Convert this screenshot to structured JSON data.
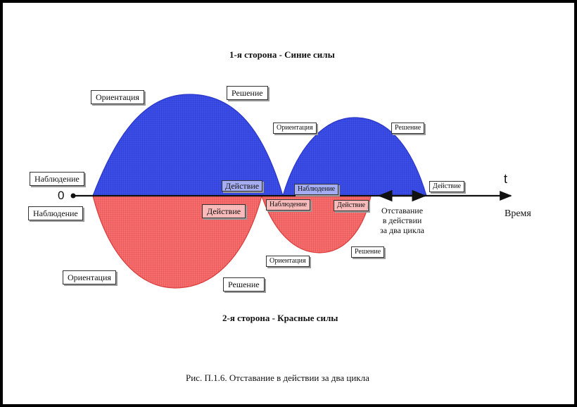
{
  "headings": {
    "top": "1-я сторона - Синие силы",
    "bottom": "2-я сторона - Красные силы"
  },
  "labels": {
    "blue_observation": "Наблюдение",
    "blue_orientation_1": "Ориентация",
    "blue_decision_1": "Решение",
    "blue_action_1": "Действие",
    "blue_orientation_2": "Ориентация",
    "blue_decision_2": "Решение",
    "blue_observation_2": "Наблюдение",
    "blue_action_2": "Действие",
    "red_observation": "Наблюдение",
    "red_action_1": "Действие",
    "red_orientation_1": "Ориентация",
    "red_decision_1": "Решение",
    "red_observation_2": "Наблюдение",
    "red_action_2": "Действие",
    "red_orientation_2": "Ориентация",
    "red_decision_2": "Решение"
  },
  "axis": {
    "origin": "0",
    "t": "t",
    "time": "Время"
  },
  "delay_text": [
    "Отставание",
    "в действии",
    "за два цикла"
  ],
  "caption": "Рис. П.1.6. Отставание в действии за два цикла",
  "colors": {
    "blue": "#3b4fe8",
    "blue_line": "#2a36c8",
    "red": "#f46a6a",
    "red_line": "#d83a3a",
    "axis": "#111111"
  }
}
